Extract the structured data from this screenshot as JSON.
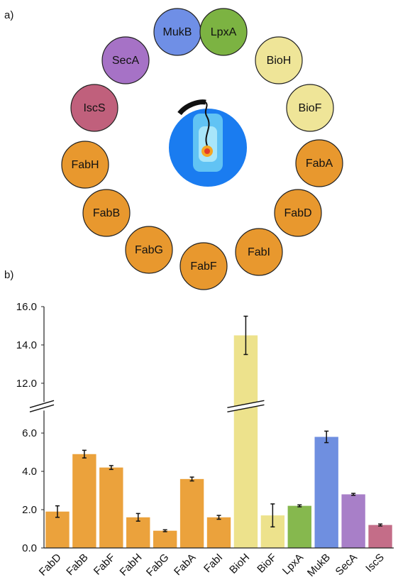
{
  "panel_labels": [
    "a)",
    "b)"
  ],
  "diagram": {
    "nodes": [
      {
        "label": "MukB",
        "color": "#6f8fe6"
      },
      {
        "label": "LpxA",
        "color": "#7cb342"
      },
      {
        "label": "BioH",
        "color": "#efe598"
      },
      {
        "label": "BioF",
        "color": "#efe598"
      },
      {
        "label": "FabA",
        "color": "#e8982e"
      },
      {
        "label": "FabD",
        "color": "#e8982e"
      },
      {
        "label": "FabI",
        "color": "#e8982e"
      },
      {
        "label": "FabF",
        "color": "#e8982e"
      },
      {
        "label": "FabG",
        "color": "#e8982e"
      },
      {
        "label": "FabB",
        "color": "#e8982e"
      },
      {
        "label": "FabH",
        "color": "#e8982e"
      },
      {
        "label": "IscS",
        "color": "#c0607c"
      },
      {
        "label": "SecA",
        "color": "#a672c6"
      }
    ]
  },
  "chart_data": {
    "type": "bar",
    "categories": [
      "FabD",
      "FabB",
      "FabF",
      "FabH",
      "FabG",
      "FabA",
      "FabI",
      "BioH",
      "BioF",
      "LpxA",
      "MukB",
      "SecA",
      "IscS"
    ],
    "values": [
      1.9,
      4.9,
      4.2,
      1.6,
      0.9,
      3.6,
      1.6,
      14.5,
      1.7,
      2.2,
      5.8,
      2.8,
      1.2
    ],
    "errors": [
      0.3,
      0.2,
      0.1,
      0.2,
      0.05,
      0.1,
      0.1,
      1.0,
      0.6,
      0.05,
      0.3,
      0.05,
      0.05
    ],
    "colors": [
      "#eba23c",
      "#eba23c",
      "#eba23c",
      "#eba23c",
      "#eba23c",
      "#eba23c",
      "#eba23c",
      "#ede28c",
      "#ede28c",
      "#86b84e",
      "#6f8fe0",
      "#a87fc8",
      "#c46d88"
    ],
    "ylim": [
      0,
      16
    ],
    "ybreak": [
      7.4,
      10.8
    ],
    "yticks": [
      {
        "value": 0,
        "label": "0.0"
      },
      {
        "value": 2,
        "label": "2.0"
      },
      {
        "value": 4,
        "label": "4.0"
      },
      {
        "value": 6,
        "label": "6.0"
      },
      {
        "value": 12,
        "label": "12.0"
      },
      {
        "value": 14,
        "label": "14.0"
      },
      {
        "value": 16,
        "label": "16.0"
      }
    ]
  }
}
